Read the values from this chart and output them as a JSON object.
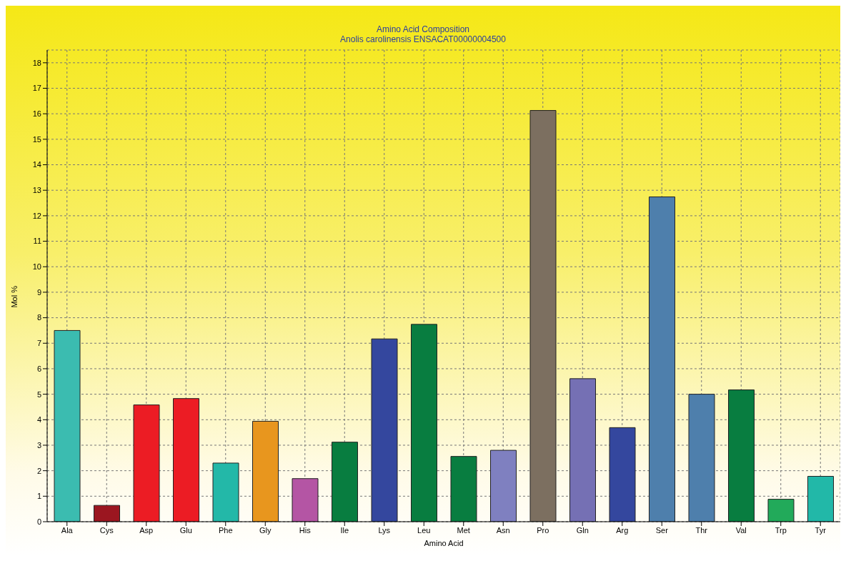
{
  "chart_data": {
    "type": "bar",
    "title": "Amino Acid Composition",
    "subtitle": "Anolis carolinensis ENSACAT00000004500",
    "xlabel": "Amino Acid",
    "ylabel": "Mol %",
    "categories": [
      "Ala",
      "Cys",
      "Asp",
      "Glu",
      "Phe",
      "Gly",
      "His",
      "Ile",
      "Lys",
      "Leu",
      "Met",
      "Asn",
      "Pro",
      "Gln",
      "Arg",
      "Ser",
      "Thr",
      "Val",
      "Trp",
      "Tyr"
    ],
    "values": [
      7.5,
      0.64,
      4.58,
      4.83,
      2.3,
      3.94,
      1.69,
      3.12,
      7.17,
      7.74,
      2.56,
      2.8,
      16.13,
      5.61,
      3.69,
      12.74,
      5.0,
      5.17,
      0.88,
      1.78
    ],
    "colors": [
      "#3bbcb0",
      "#9b1620",
      "#ec1c24",
      "#ec1c24",
      "#23b8a8",
      "#e8961e",
      "#b455a4",
      "#087d40",
      "#34479e",
      "#087d40",
      "#087d40",
      "#7f80c0",
      "#7c6f60",
      "#7570b4",
      "#34479e",
      "#4e7fac",
      "#4e7fac",
      "#087d40",
      "#22aa5a",
      "#22b8a8"
    ],
    "ylim": [
      0,
      18.5
    ],
    "yticks": [
      0,
      1,
      2,
      3,
      4,
      5,
      6,
      7,
      8,
      9,
      10,
      11,
      12,
      13,
      14,
      15,
      16,
      17,
      18
    ],
    "grid": true,
    "legend": false
  }
}
